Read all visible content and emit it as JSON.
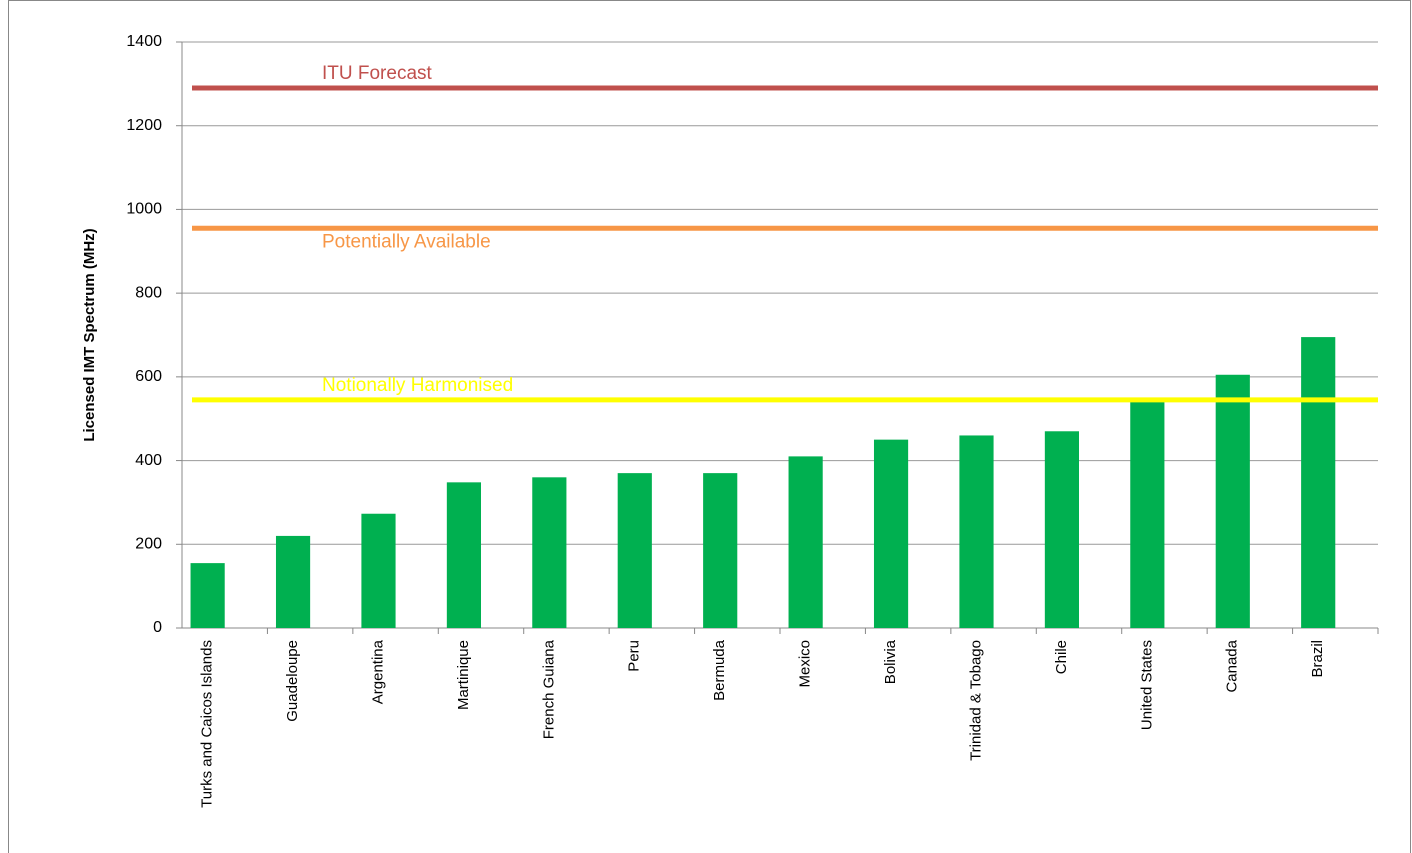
{
  "chart_data": {
    "type": "bar",
    "y_label": "Licensed IMT Spectrum (MHz)",
    "categories": [
      "Turks and Caicos Islands",
      "Guadeloupe",
      "Argentina",
      "Martinique",
      "French Guiana",
      "Peru",
      "Bermuda",
      "Mexico",
      "Bolivia",
      "Trinidad & Tobago",
      "Chile",
      "United States",
      "Canada",
      "Brazil"
    ],
    "values": [
      155,
      220,
      273,
      348,
      360,
      370,
      370,
      410,
      450,
      460,
      470,
      545,
      605,
      695
    ],
    "color": "#00b050",
    "ylim": [
      0,
      1400
    ],
    "yticks": [
      0,
      200,
      400,
      600,
      800,
      1000,
      1200,
      1400
    ],
    "grid": true,
    "reference_lines": [
      {
        "label": "ITU Forecast",
        "value": 1290,
        "color": "#c0504d"
      },
      {
        "label": "Potentially Available",
        "value": 955,
        "color": "#f79646"
      },
      {
        "label": "Notionally Harmonised",
        "value": 545,
        "color": "#ffff00"
      }
    ]
  }
}
